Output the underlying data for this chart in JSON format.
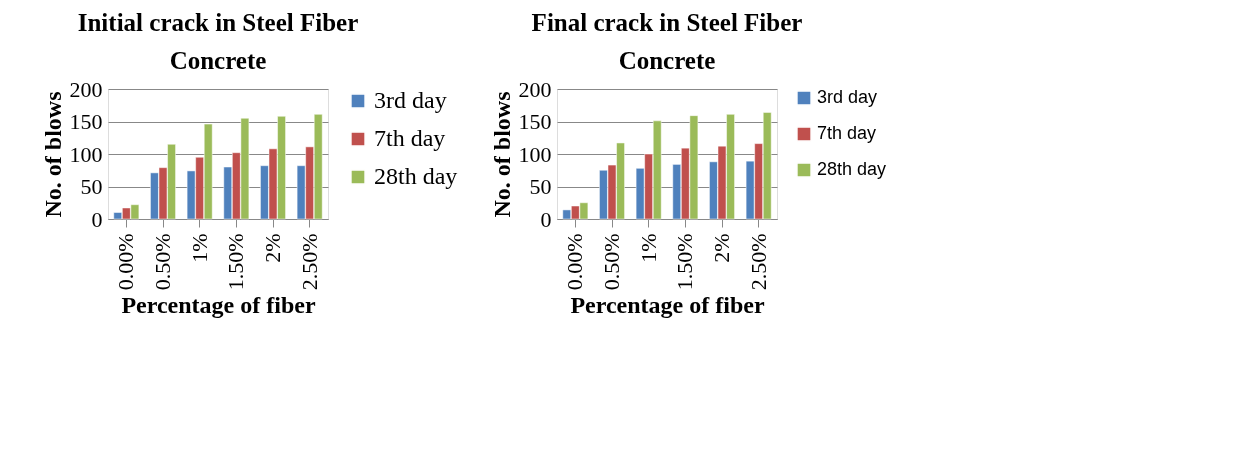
{
  "chart_data": [
    {
      "type": "bar",
      "title": "Initial crack in Steel Fiber Concrete",
      "xlabel": "Percentage of fiber",
      "ylabel": "No. of blows",
      "categories": [
        "0.00%",
        "0.50%",
        "1%",
        "1.50%",
        "2%",
        "2.50%"
      ],
      "series": [
        {
          "name": "3rd day",
          "color": "#4f81bd",
          "values": [
            10,
            71,
            74,
            80,
            82,
            82
          ]
        },
        {
          "name": "7th day",
          "color": "#c0504d",
          "values": [
            17,
            79,
            95,
            102,
            108,
            111
          ]
        },
        {
          "name": "28th day",
          "color": "#9bbb59",
          "values": [
            22,
            115,
            146,
            155,
            158,
            161
          ]
        }
      ],
      "ylim": [
        0,
        200
      ],
      "yticks": [
        0,
        50,
        100,
        150,
        200
      ],
      "grid": "y",
      "legend": "right"
    },
    {
      "type": "bar",
      "title": "Final crack in Steel Fiber Concrete",
      "xlabel": "Percentage of fiber",
      "ylabel": "No. of blows",
      "categories": [
        "0.00%",
        "0.50%",
        "1%",
        "1.50%",
        "2%",
        "2.50%"
      ],
      "series": [
        {
          "name": "3rd day",
          "color": "#4f81bd",
          "values": [
            14,
            75,
            78,
            84,
            88,
            89
          ]
        },
        {
          "name": "7th day",
          "color": "#c0504d",
          "values": [
            20,
            83,
            100,
            109,
            112,
            116
          ]
        },
        {
          "name": "28th day",
          "color": "#9bbb59",
          "values": [
            25,
            117,
            151,
            159,
            161,
            164
          ]
        }
      ],
      "ylim": [
        0,
        200
      ],
      "yticks": [
        0,
        50,
        100,
        150,
        200
      ],
      "grid": "y",
      "legend": "right"
    }
  ]
}
